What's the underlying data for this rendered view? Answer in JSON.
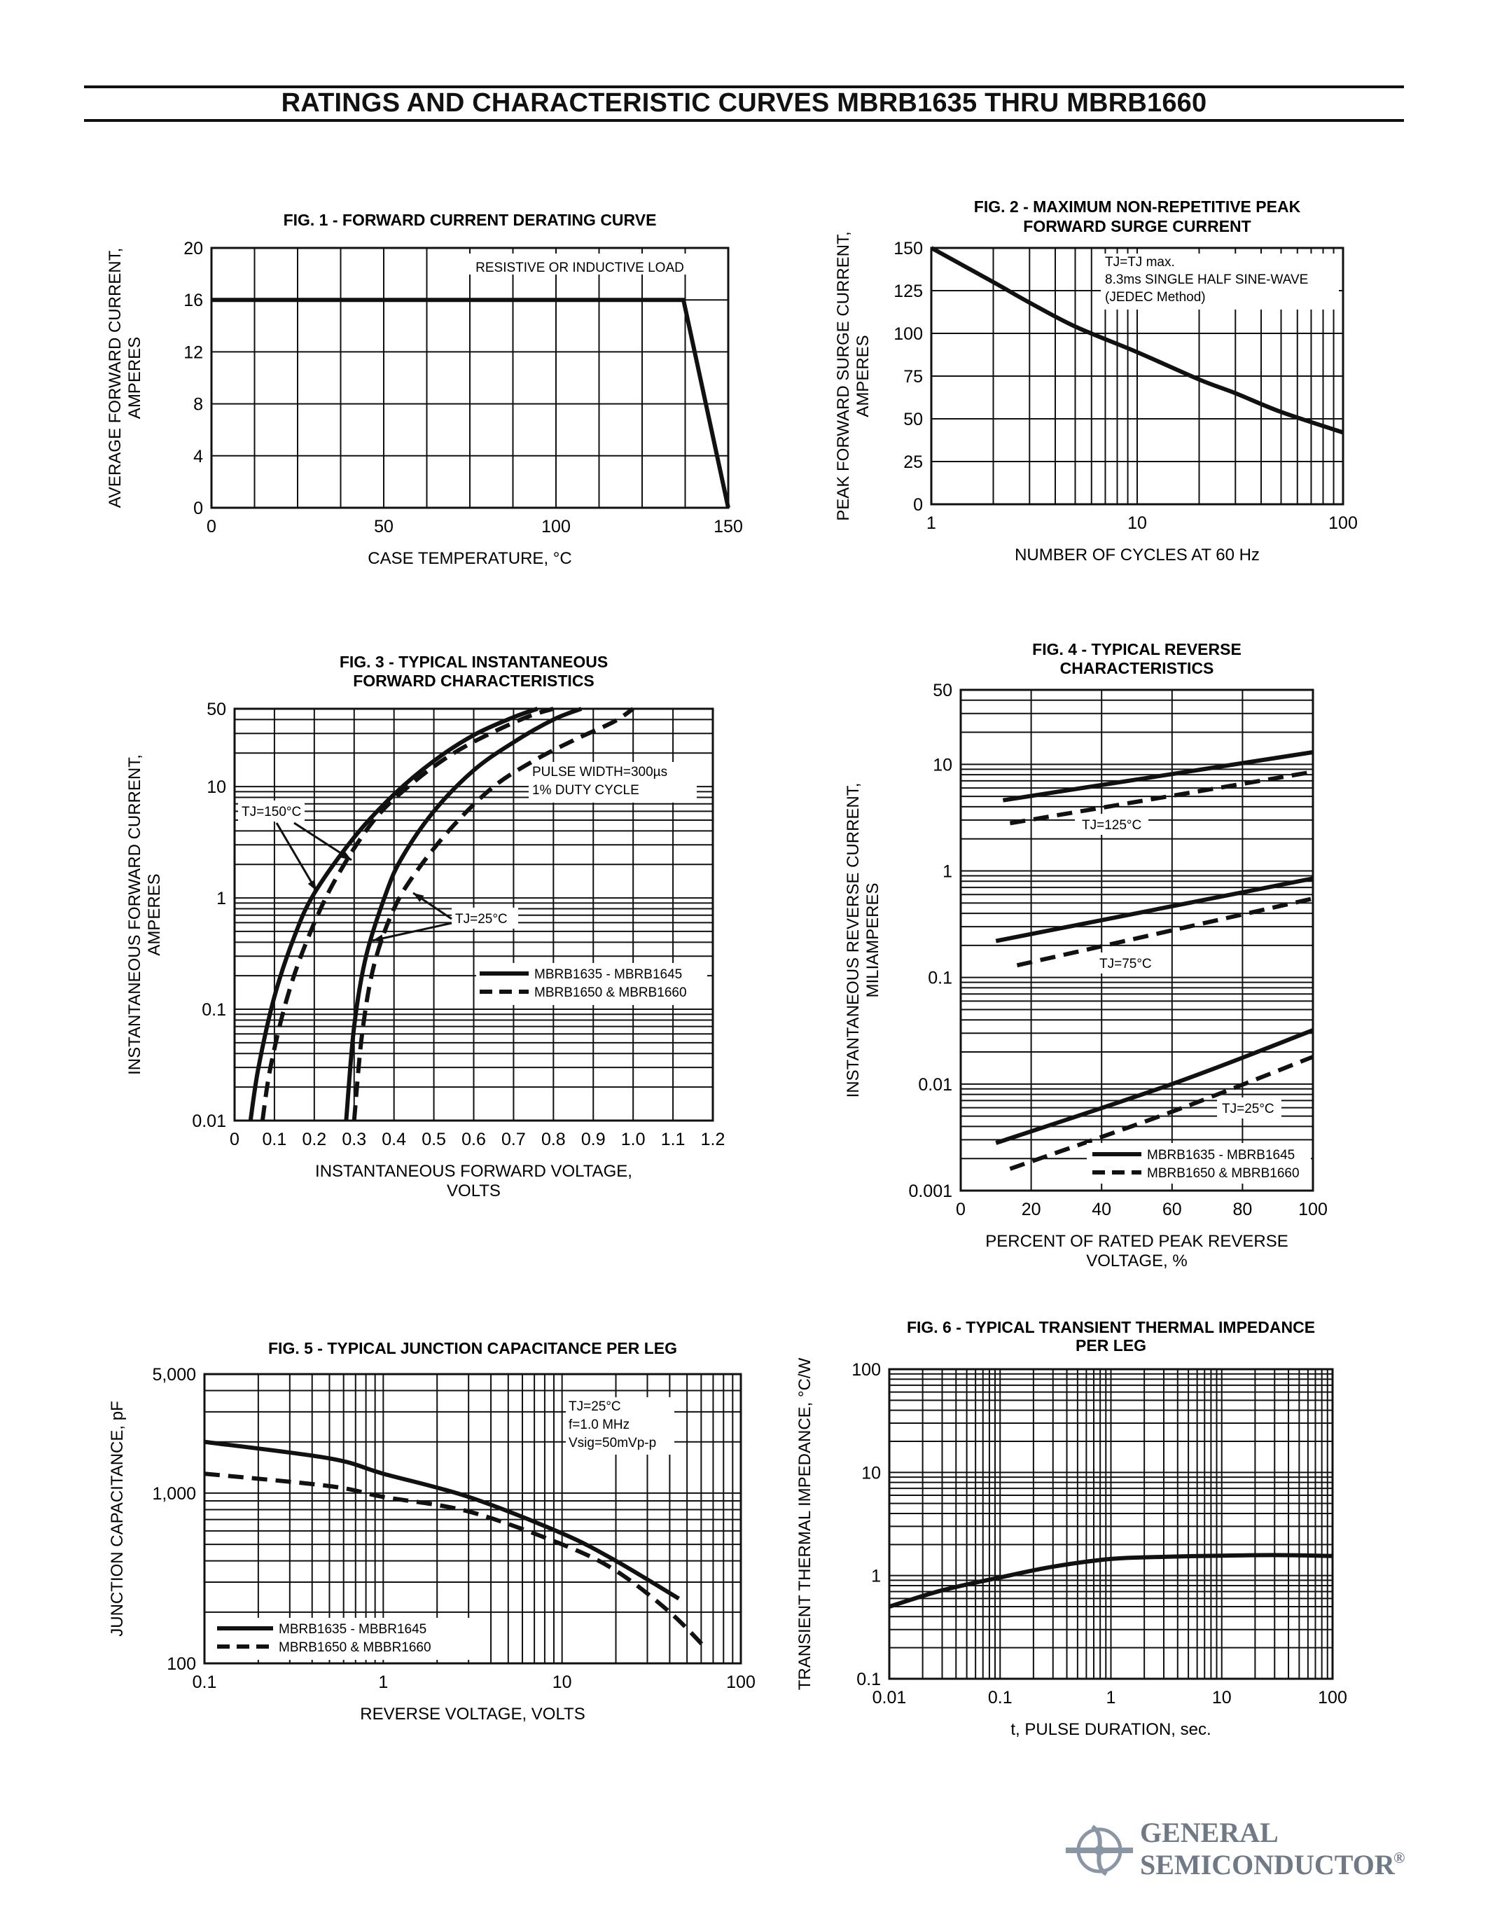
{
  "page": {
    "title": "RATINGS AND CHARACTERISTIC CURVES MBRB1635 THRU MBRB1660"
  },
  "logo": {
    "line1": "GENERAL",
    "line2": "SEMICONDUCTOR",
    "registered": "®"
  },
  "chart_data": [
    {
      "type": "line",
      "title": "FIG. 1 - FORWARD CURRENT DERATING CURVE",
      "xlabel": "CASE TEMPERATURE, °C",
      "ylabel": [
        "AVERAGE FORWARD CURRENT,",
        "AMPERES"
      ],
      "xlim": [
        0,
        150
      ],
      "ylim": [
        0,
        20
      ],
      "xticks": [
        0,
        50,
        100,
        150
      ],
      "yticks": [
        0,
        4,
        8,
        12,
        16,
        20
      ],
      "xtick_labels": [
        "0",
        "50",
        "100",
        "150"
      ],
      "ytick_labels": [
        "0",
        "4",
        "8",
        "12",
        "16",
        "20"
      ],
      "grid": true,
      "annotations": [
        "RESISTIVE OR INDUCTIVE LOAD"
      ],
      "series": [
        {
          "x": [
            0,
            137,
            150
          ],
          "y": [
            16,
            16,
            0
          ],
          "style": "solid"
        }
      ]
    },
    {
      "type": "line",
      "title": [
        "FIG. 2 - MAXIMUM NON-REPETITIVE PEAK",
        "FORWARD SURGE CURRENT"
      ],
      "xlabel": "NUMBER OF CYCLES AT 60 Hz",
      "ylabel": [
        "PEAK FORWARD SURGE CURRENT,",
        "AMPERES"
      ],
      "xscale": "log",
      "xlim": [
        1,
        100
      ],
      "ylim": [
        0,
        150
      ],
      "xtick_labels": [
        "1",
        "10",
        "100"
      ],
      "ytick_labels": [
        "0",
        "25",
        "50",
        "75",
        "100",
        "125",
        "150"
      ],
      "grid": true,
      "annotations": [
        "TJ=TJ max.",
        "8.3ms SINGLE HALF SINE-WAVE",
        "(JEDEC Method)"
      ],
      "series": [
        {
          "x": [
            1,
            2,
            3,
            5,
            10,
            20,
            30,
            50,
            100
          ],
          "y": [
            150,
            130,
            118,
            104,
            89,
            73,
            65,
            54,
            42
          ],
          "style": "solid"
        }
      ]
    },
    {
      "type": "line",
      "title": [
        "FIG. 3 - TYPICAL INSTANTANEOUS",
        "FORWARD CHARACTERISTICS"
      ],
      "xlabel": [
        "INSTANTANEOUS FORWARD VOLTAGE,",
        "VOLTS"
      ],
      "ylabel": [
        "INSTANTANEOUS FORWARD CURRENT,",
        "AMPERES"
      ],
      "yscale": "log",
      "xlim": [
        0,
        1.2
      ],
      "ylim": [
        0.01,
        50
      ],
      "xtick_labels": [
        "0",
        "0.1",
        "0.2",
        "0.3",
        "0.4",
        "0.5",
        "0.6",
        "0.7",
        "0.8",
        "0.9",
        "1.0",
        "1.1",
        "1.2"
      ],
      "ytick_labels": [
        "0.01",
        "0.1",
        "1",
        "10",
        "50"
      ],
      "grid": true,
      "annotations": [
        "PULSE WIDTH=300µs",
        "1% DUTY CYCLE",
        "TJ=150°C",
        "TJ=25°C"
      ],
      "legend": {
        "position": "right",
        "entries": [
          {
            "label": "MBRB1635 - MBRB1645",
            "style": "solid"
          },
          {
            "label": "MBRB1650 & MBRB1660",
            "style": "dashed"
          }
        ]
      },
      "series": [
        {
          "x": [
            0.04,
            0.06,
            0.1,
            0.15,
            0.2,
            0.3,
            0.4,
            0.5,
            0.6,
            0.7,
            0.76
          ],
          "y": [
            0.01,
            0.03,
            0.13,
            0.45,
            1.1,
            3.5,
            8.5,
            17,
            29,
            42,
            50
          ],
          "style": "solid"
        },
        {
          "x": [
            0.07,
            0.09,
            0.13,
            0.18,
            0.25,
            0.35,
            0.45,
            0.55,
            0.65,
            0.74,
            0.8
          ],
          "y": [
            0.01,
            0.03,
            0.12,
            0.4,
            1.4,
            5,
            11,
            20,
            31,
            43,
            50
          ],
          "style": "dashed"
        },
        {
          "x": [
            0.28,
            0.3,
            0.33,
            0.38,
            0.42,
            0.5,
            0.6,
            0.7,
            0.8,
            0.87
          ],
          "y": [
            0.01,
            0.07,
            0.3,
            1.1,
            2.3,
            6,
            14,
            25,
            40,
            50
          ],
          "style": "solid"
        },
        {
          "x": [
            0.3,
            0.32,
            0.35,
            0.4,
            0.46,
            0.55,
            0.65,
            0.75,
            0.85,
            0.95,
            1.0
          ],
          "y": [
            0.01,
            0.06,
            0.25,
            0.8,
            1.8,
            4.5,
            10,
            17,
            26,
            38,
            50
          ],
          "style": "dashed"
        }
      ]
    },
    {
      "type": "line",
      "title": [
        "FIG. 4 - TYPICAL REVERSE",
        "CHARACTERISTICS"
      ],
      "xlabel": [
        "PERCENT OF RATED PEAK REVERSE",
        "VOLTAGE, %"
      ],
      "ylabel": [
        "INSTANTANEOUS REVERSE CURRENT,",
        "MILIAMPERES"
      ],
      "yscale": "log",
      "xlim": [
        0,
        100
      ],
      "ylim": [
        0.001,
        50
      ],
      "xtick_labels": [
        "0",
        "20",
        "40",
        "60",
        "80",
        "100"
      ],
      "ytick_labels": [
        "0.001",
        "0.01",
        "0.1",
        "1",
        "10",
        "50"
      ],
      "grid": true,
      "annotations": [
        "TJ=125°C",
        "TJ=75°C",
        "TJ=25°C"
      ],
      "legend": {
        "position": "bottom-right",
        "entries": [
          {
            "label": "MBRB1635 - MBRB1645",
            "style": "solid"
          },
          {
            "label": "MBRB1650 & MBRB1660",
            "style": "dashed"
          }
        ]
      },
      "series": [
        {
          "x": [
            12,
            100
          ],
          "y": [
            4.6,
            13
          ],
          "style": "solid"
        },
        {
          "x": [
            14,
            100
          ],
          "y": [
            2.8,
            8.5
          ],
          "style": "dashed"
        },
        {
          "x": [
            10,
            100
          ],
          "y": [
            0.22,
            0.85
          ],
          "style": "solid"
        },
        {
          "x": [
            16,
            100
          ],
          "y": [
            0.13,
            0.55
          ],
          "style": "dashed"
        },
        {
          "x": [
            10,
            60,
            100
          ],
          "y": [
            0.0028,
            0.01,
            0.032
          ],
          "style": "solid"
        },
        {
          "x": [
            14,
            60,
            100
          ],
          "y": [
            0.0016,
            0.0055,
            0.018
          ],
          "style": "dashed"
        }
      ]
    },
    {
      "type": "line",
      "title": "FIG. 5 - TYPICAL JUNCTION CAPACITANCE PER LEG",
      "xlabel": "REVERSE VOLTAGE, VOLTS",
      "ylabel": "JUNCTION CAPACITANCE, pF",
      "xscale": "log",
      "yscale": "log",
      "xlim": [
        0.1,
        100
      ],
      "ylim": [
        100,
        5000
      ],
      "xtick_labels": [
        "0.1",
        "1",
        "10",
        "100"
      ],
      "ytick_labels": [
        "100",
        "1,000",
        "5,000"
      ],
      "grid": true,
      "annotations": [
        "TJ=25°C",
        "f=1.0 MHz",
        "Vsig=50mVp-p"
      ],
      "legend": {
        "position": "bottom-left",
        "entries": [
          {
            "label": "MBRB1635 - MBBR1645",
            "style": "solid"
          },
          {
            "label": "MBRB1650 & MBBR1660",
            "style": "dashed"
          }
        ]
      },
      "series": [
        {
          "x": [
            0.1,
            0.5,
            1,
            3,
            10,
            20,
            45
          ],
          "y": [
            2000,
            1600,
            1300,
            950,
            580,
            400,
            240
          ],
          "style": "solid"
        },
        {
          "x": [
            0.1,
            0.5,
            1,
            3,
            10,
            20,
            40,
            65
          ],
          "y": [
            1300,
            1100,
            950,
            780,
            500,
            350,
            200,
            120
          ],
          "style": "dashed"
        }
      ]
    },
    {
      "type": "line",
      "title": [
        "FIG. 6 - TYPICAL TRANSIENT THERMAL IMPEDANCE",
        "PER LEG"
      ],
      "xlabel": "t, PULSE DURATION, sec.",
      "ylabel": "TRANSIENT THERMAL IMPEDANCE, °C/W",
      "xscale": "log",
      "yscale": "log",
      "xlim": [
        0.01,
        100
      ],
      "ylim": [
        0.1,
        100
      ],
      "xtick_labels": [
        "0.01",
        "0.1",
        "1",
        "10",
        "100"
      ],
      "ytick_labels": [
        "0.1",
        "1",
        "10",
        "100"
      ],
      "grid": true,
      "series": [
        {
          "x": [
            0.01,
            0.03,
            0.1,
            0.3,
            1,
            3,
            10,
            30,
            100
          ],
          "y": [
            0.5,
            0.72,
            0.96,
            1.22,
            1.45,
            1.52,
            1.56,
            1.58,
            1.55
          ],
          "style": "solid"
        }
      ]
    }
  ]
}
